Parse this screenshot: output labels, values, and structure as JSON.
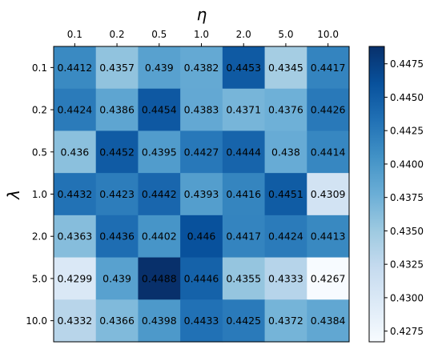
{
  "chart_data": {
    "type": "heatmap",
    "title": "",
    "xlabel": "η",
    "ylabel": "λ",
    "x_categories": [
      "0.1",
      "0.2",
      "0.5",
      "1.0",
      "2.0",
      "5.0",
      "10.0"
    ],
    "y_categories": [
      "0.1",
      "0.2",
      "0.5",
      "1.0",
      "2.0",
      "5.0",
      "10.0"
    ],
    "x_axis_position": "top",
    "values": [
      [
        0.4412,
        0.4357,
        0.439,
        0.4382,
        0.4453,
        0.4345,
        0.4417
      ],
      [
        0.4424,
        0.4386,
        0.4454,
        0.4383,
        0.4371,
        0.4376,
        0.4426
      ],
      [
        0.436,
        0.4452,
        0.4395,
        0.4427,
        0.4444,
        0.438,
        0.4414
      ],
      [
        0.4432,
        0.4423,
        0.4442,
        0.4393,
        0.4416,
        0.4451,
        0.4309
      ],
      [
        0.4363,
        0.4436,
        0.4402,
        0.446,
        0.4417,
        0.4424,
        0.4413
      ],
      [
        0.4299,
        0.439,
        0.4488,
        0.4446,
        0.4355,
        0.4333,
        0.4267
      ],
      [
        0.4332,
        0.4366,
        0.4398,
        0.4433,
        0.4425,
        0.4372,
        0.4384
      ]
    ],
    "value_labels": [
      [
        "0.4412",
        "0.4357",
        "0.439",
        "0.4382",
        "0.4453",
        "0.4345",
        "0.4417"
      ],
      [
        "0.4424",
        "0.4386",
        "0.4454",
        "0.4383",
        "0.4371",
        "0.4376",
        "0.4426"
      ],
      [
        "0.436",
        "0.4452",
        "0.4395",
        "0.4427",
        "0.4444",
        "0.438",
        "0.4414"
      ],
      [
        "0.4432",
        "0.4423",
        "0.4442",
        "0.4393",
        "0.4416",
        "0.4451",
        "0.4309"
      ],
      [
        "0.4363",
        "0.4436",
        "0.4402",
        "0.446",
        "0.4417",
        "0.4424",
        "0.4413"
      ],
      [
        "0.4299",
        "0.439",
        "0.4488",
        "0.4446",
        "0.4355",
        "0.4333",
        "0.4267"
      ],
      [
        "0.4332",
        "0.4366",
        "0.4398",
        "0.4433",
        "0.4425",
        "0.4372",
        "0.4384"
      ]
    ],
    "colorbar": {
      "ticks": [
        "0.4275",
        "0.4300",
        "0.4325",
        "0.4350",
        "0.4375",
        "0.4400",
        "0.4425",
        "0.4450",
        "0.4475"
      ],
      "range": [
        0.4267,
        0.4488
      ],
      "colormap": "Blues"
    },
    "colors": {
      "low": "#f7fbff",
      "high": "#08306b"
    }
  }
}
